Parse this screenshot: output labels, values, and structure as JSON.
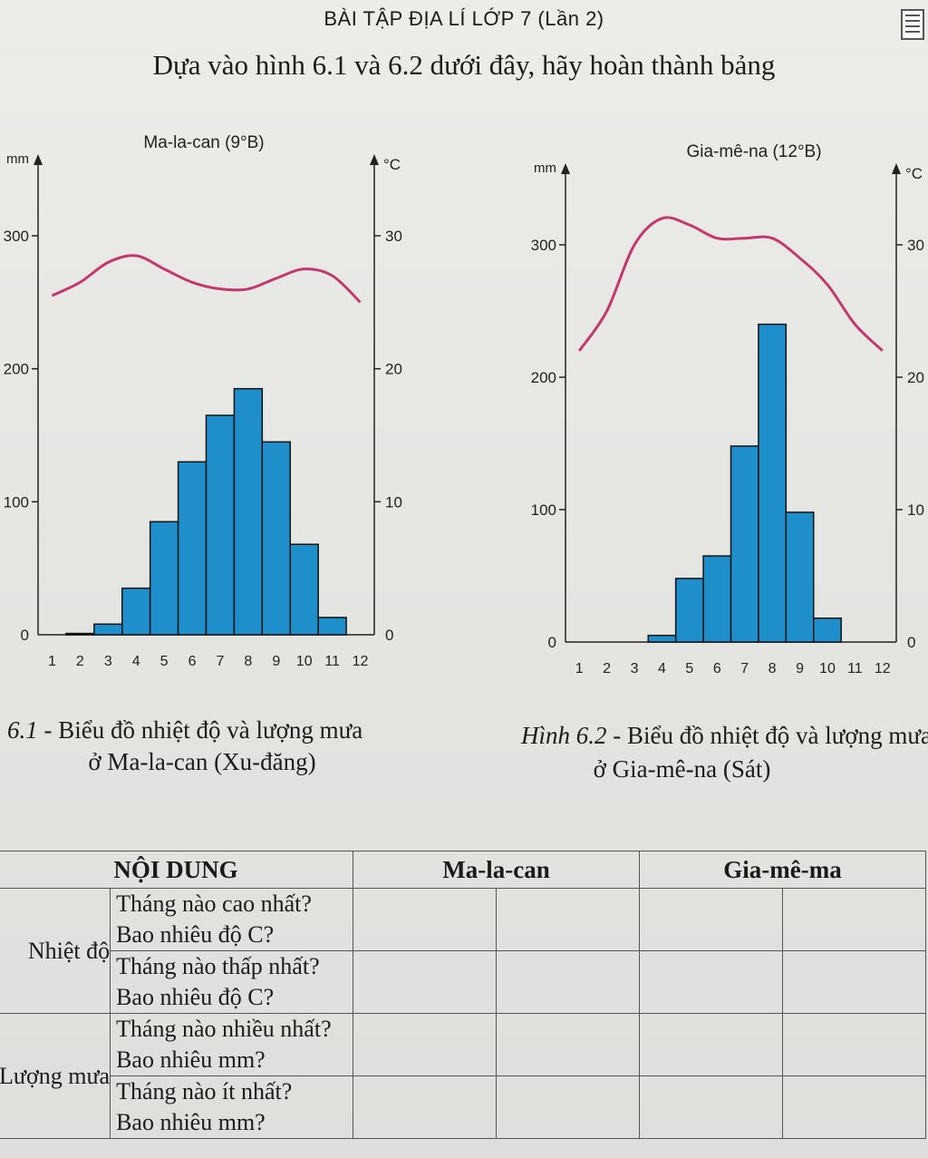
{
  "header": "BÀI TẬP ĐỊA LÍ LỚP 7 (Lần 2)",
  "instruction": "Dựa vào hình 6.1 và 6.2 dưới đây, hãy hoàn thành bảng",
  "icons": {
    "document": "document-icon"
  },
  "colors": {
    "bars": "#1f8fcc",
    "temperature_line": "#c2386f"
  },
  "chart_data": [
    {
      "type": "bar",
      "title": "Ma-la-can (9°B)",
      "categories": [
        "1",
        "2",
        "3",
        "4",
        "5",
        "6",
        "7",
        "8",
        "9",
        "10",
        "11",
        "12"
      ],
      "rainfall_mm": [
        0,
        1,
        8,
        35,
        85,
        130,
        165,
        185,
        145,
        68,
        13,
        0
      ],
      "temperature_c": [
        25.5,
        26.5,
        28,
        28.5,
        27.5,
        26.5,
        26,
        26,
        26.8,
        27.5,
        27,
        25
      ],
      "ylabel_left": "mm",
      "ylabel_right": "°C",
      "ylim_left": [
        0,
        300
      ],
      "ylim_right": [
        0,
        30
      ],
      "yticks_left": [
        "0",
        "100",
        "200",
        "300"
      ],
      "yticks_right": [
        "0",
        "10",
        "20",
        "30"
      ],
      "caption_num": "6.1",
      "caption_line1": " - Biểu đồ nhiệt độ và lượng mưa",
      "caption_line2": "ở Ma-la-can (Xu-đăng)"
    },
    {
      "type": "bar",
      "title": "Gia-mê-na (12°B)",
      "categories": [
        "1",
        "2",
        "3",
        "4",
        "5",
        "6",
        "7",
        "8",
        "9",
        "10",
        "11",
        "12"
      ],
      "rainfall_mm": [
        0,
        0,
        0,
        5,
        48,
        65,
        148,
        240,
        98,
        18,
        0,
        0
      ],
      "temperature_c": [
        22,
        25,
        30,
        32,
        31.5,
        30.5,
        30.5,
        30.5,
        29,
        27,
        24,
        22
      ],
      "ylabel_left": "mm",
      "ylabel_right": "°C",
      "ylim_left": [
        0,
        300
      ],
      "ylim_right": [
        0,
        30
      ],
      "yticks_left": [
        "0",
        "100",
        "200",
        "300"
      ],
      "yticks_right": [
        "0",
        "10",
        "20",
        "30"
      ],
      "caption_num": "Hình 6.2",
      "caption_line1": " - Biểu đồ nhiệt độ và lượng mưa",
      "caption_line2": "ở Gia-mê-na (Sát)"
    }
  ],
  "table": {
    "headers": [
      "NỘI DUNG",
      "Ma-la-can",
      "Gia-mê-ma"
    ],
    "groups": [
      {
        "category": "Nhiệt độ",
        "questions": [
          "Tháng nào cao nhất?",
          "Bao nhiêu độ C?",
          "Tháng nào thấp nhất?",
          "Bao nhiêu độ C?"
        ]
      },
      {
        "category": "Lượng mưa",
        "questions": [
          "Tháng nào nhiều nhất?",
          "Bao nhiêu mm?",
          "Tháng nào ít nhất?",
          "Bao nhiêu mm?"
        ]
      }
    ]
  }
}
